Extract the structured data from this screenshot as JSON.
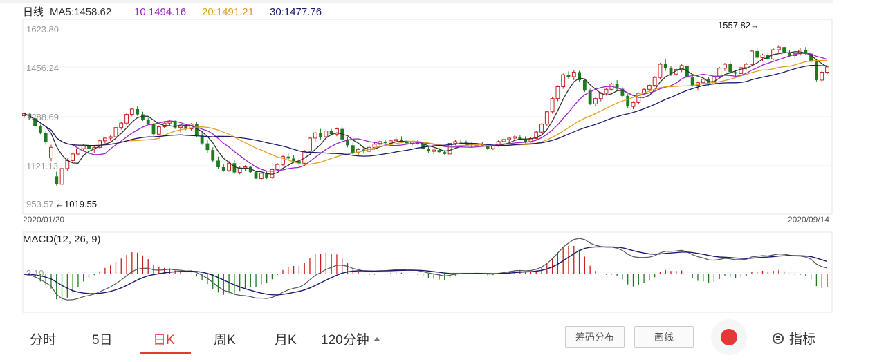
{
  "chart_data": [
    {
      "type": "candlestick",
      "title": "日线",
      "date_start": "2020/01/20",
      "date_end": "2020/09/14",
      "y_ticks": [
        "1623.80",
        "1456.24",
        "1288.69",
        "1121.13",
        "953.57"
      ],
      "ylim": [
        953.57,
        1623.8
      ],
      "ma_legend": [
        {
          "label": "MA5:1458.62",
          "color": "#333333"
        },
        {
          "label": "10:1494.16",
          "color": "#a020c8"
        },
        {
          "label": "20:1491.21",
          "color": "#e0a020"
        },
        {
          "label": "30:1477.76",
          "color": "#1a1a6e"
        }
      ],
      "max_annotation": "1557.82→",
      "min_annotation": "←1019.55",
      "colors": {
        "up": "#c81e1e",
        "down": "#1e7a1e"
      },
      "ohlc": [
        [
          1290,
          1302,
          1282,
          1298
        ],
        [
          1297,
          1300,
          1276,
          1280
        ],
        [
          1280,
          1284,
          1248,
          1250
        ],
        [
          1250,
          1256,
          1220,
          1225
        ],
        [
          1225,
          1232,
          1180,
          1190
        ],
        [
          1130,
          1180,
          1118,
          1170
        ],
        [
          1060,
          1078,
          1025,
          1030
        ],
        [
          1030,
          1095,
          1019.55,
          1090
        ],
        [
          1090,
          1128,
          1082,
          1120
        ],
        [
          1120,
          1150,
          1115,
          1145
        ],
        [
          1145,
          1170,
          1140,
          1165
        ],
        [
          1165,
          1182,
          1155,
          1178
        ],
        [
          1178,
          1190,
          1160,
          1165
        ],
        [
          1165,
          1176,
          1150,
          1170
        ],
        [
          1170,
          1198,
          1165,
          1195
        ],
        [
          1195,
          1210,
          1185,
          1205
        ],
        [
          1205,
          1215,
          1195,
          1210
        ],
        [
          1210,
          1250,
          1205,
          1245
        ],
        [
          1245,
          1268,
          1238,
          1262
        ],
        [
          1262,
          1300,
          1255,
          1295
        ],
        [
          1295,
          1320,
          1288,
          1315
        ],
        [
          1315,
          1325,
          1290,
          1295
        ],
        [
          1295,
          1305,
          1270,
          1275
        ],
        [
          1275,
          1282,
          1255,
          1260
        ],
        [
          1260,
          1262,
          1215,
          1220
        ],
        [
          1220,
          1252,
          1215,
          1248
        ],
        [
          1248,
          1268,
          1242,
          1262
        ],
        [
          1262,
          1275,
          1250,
          1270
        ],
        [
          1270,
          1272,
          1240,
          1245
        ],
        [
          1245,
          1255,
          1228,
          1250
        ],
        [
          1250,
          1260,
          1235,
          1240
        ],
        [
          1240,
          1262,
          1232,
          1258
        ],
        [
          1258,
          1265,
          1210,
          1215
        ],
        [
          1215,
          1230,
          1180,
          1185
        ],
        [
          1185,
          1198,
          1150,
          1160
        ],
        [
          1160,
          1170,
          1115,
          1120
        ],
        [
          1120,
          1135,
          1090,
          1095
        ],
        [
          1095,
          1108,
          1078,
          1082
        ],
        [
          1082,
          1118,
          1078,
          1110
        ],
        [
          1110,
          1122,
          1070,
          1075
        ],
        [
          1075,
          1098,
          1068,
          1092
        ],
        [
          1092,
          1102,
          1080,
          1096
        ],
        [
          1096,
          1100,
          1072,
          1076
        ],
        [
          1076,
          1080,
          1050,
          1052
        ],
        [
          1052,
          1075,
          1048,
          1072
        ],
        [
          1072,
          1082,
          1050,
          1056
        ],
        [
          1056,
          1090,
          1052,
          1086
        ],
        [
          1086,
          1110,
          1080,
          1105
        ],
        [
          1105,
          1140,
          1100,
          1135
        ],
        [
          1135,
          1150,
          1120,
          1128
        ],
        [
          1128,
          1142,
          1110,
          1118
        ],
        [
          1118,
          1128,
          1100,
          1110
        ],
        [
          1110,
          1160,
          1105,
          1155
        ],
        [
          1155,
          1210,
          1150,
          1205
        ],
        [
          1205,
          1230,
          1190,
          1225
        ],
        [
          1225,
          1240,
          1200,
          1210
        ],
        [
          1210,
          1238,
          1205,
          1232
        ],
        [
          1232,
          1240,
          1215,
          1220
        ],
        [
          1220,
          1245,
          1212,
          1240
        ],
        [
          1240,
          1248,
          1195,
          1200
        ],
        [
          1200,
          1210,
          1170,
          1178
        ],
        [
          1178,
          1188,
          1140,
          1150
        ],
        [
          1150,
          1168,
          1140,
          1162
        ],
        [
          1162,
          1172,
          1150,
          1155
        ],
        [
          1155,
          1175,
          1148,
          1170
        ],
        [
          1170,
          1188,
          1165,
          1182
        ],
        [
          1182,
          1198,
          1172,
          1192
        ],
        [
          1192,
          1200,
          1180,
          1186
        ],
        [
          1186,
          1198,
          1178,
          1195
        ],
        [
          1195,
          1208,
          1188,
          1200
        ],
        [
          1200,
          1212,
          1190,
          1195
        ],
        [
          1195,
          1200,
          1180,
          1185
        ],
        [
          1185,
          1195,
          1178,
          1190
        ],
        [
          1190,
          1198,
          1180,
          1184
        ],
        [
          1184,
          1190,
          1160,
          1165
        ],
        [
          1165,
          1172,
          1150,
          1155
        ],
        [
          1155,
          1165,
          1145,
          1160
        ],
        [
          1160,
          1168,
          1148,
          1152
        ],
        [
          1152,
          1160,
          1140,
          1145
        ],
        [
          1145,
          1190,
          1142,
          1185
        ],
        [
          1185,
          1198,
          1178,
          1192
        ],
        [
          1192,
          1200,
          1182,
          1188
        ],
        [
          1188,
          1196,
          1178,
          1183
        ],
        [
          1183,
          1188,
          1172,
          1178
        ],
        [
          1178,
          1186,
          1170,
          1182
        ],
        [
          1182,
          1190,
          1172,
          1175
        ],
        [
          1175,
          1182,
          1160,
          1165
        ],
        [
          1165,
          1180,
          1160,
          1175
        ],
        [
          1175,
          1198,
          1172,
          1192
        ],
        [
          1192,
          1205,
          1185,
          1200
        ],
        [
          1200,
          1210,
          1192,
          1205
        ],
        [
          1205,
          1215,
          1195,
          1210
        ],
        [
          1210,
          1218,
          1198,
          1202
        ],
        [
          1202,
          1212,
          1185,
          1190
        ],
        [
          1190,
          1208,
          1188,
          1204
        ],
        [
          1204,
          1232,
          1200,
          1228
        ],
        [
          1228,
          1262,
          1222,
          1258
        ],
        [
          1258,
          1310,
          1252,
          1305
        ],
        [
          1305,
          1360,
          1298,
          1355
        ],
        [
          1355,
          1405,
          1345,
          1400
        ],
        [
          1400,
          1450,
          1392,
          1445
        ],
        [
          1445,
          1458,
          1430,
          1438
        ],
        [
          1438,
          1462,
          1425,
          1455
        ],
        [
          1455,
          1460,
          1420,
          1425
        ],
        [
          1425,
          1430,
          1380,
          1385
        ],
        [
          1385,
          1392,
          1330,
          1335
        ],
        [
          1335,
          1360,
          1325,
          1355
        ],
        [
          1355,
          1380,
          1345,
          1375
        ],
        [
          1375,
          1395,
          1368,
          1390
        ],
        [
          1390,
          1415,
          1385,
          1410
        ],
        [
          1410,
          1425,
          1388,
          1392
        ],
        [
          1392,
          1398,
          1360,
          1365
        ],
        [
          1365,
          1372,
          1320,
          1325
        ],
        [
          1325,
          1345,
          1315,
          1340
        ],
        [
          1340,
          1378,
          1335,
          1375
        ],
        [
          1375,
          1395,
          1368,
          1390
        ],
        [
          1390,
          1410,
          1380,
          1405
        ],
        [
          1405,
          1440,
          1400,
          1435
        ],
        [
          1435,
          1490,
          1430,
          1485
        ],
        [
          1485,
          1505,
          1460,
          1470
        ],
        [
          1470,
          1478,
          1440,
          1448
        ],
        [
          1448,
          1470,
          1442,
          1465
        ],
        [
          1465,
          1485,
          1455,
          1480
        ],
        [
          1480,
          1490,
          1430,
          1435
        ],
        [
          1435,
          1442,
          1400,
          1405
        ],
        [
          1405,
          1420,
          1385,
          1415
        ],
        [
          1415,
          1432,
          1408,
          1428
        ],
        [
          1428,
          1438,
          1405,
          1410
        ],
        [
          1410,
          1445,
          1405,
          1440
        ],
        [
          1440,
          1475,
          1435,
          1470
        ],
        [
          1470,
          1490,
          1460,
          1485
        ],
        [
          1485,
          1495,
          1450,
          1455
        ],
        [
          1455,
          1462,
          1440,
          1450
        ],
        [
          1450,
          1478,
          1445,
          1472
        ],
        [
          1472,
          1490,
          1465,
          1485
        ],
        [
          1485,
          1540,
          1480,
          1535
        ],
        [
          1535,
          1545,
          1505,
          1510
        ],
        [
          1510,
          1525,
          1498,
          1520
        ],
        [
          1520,
          1530,
          1500,
          1505
        ],
        [
          1505,
          1545,
          1500,
          1540
        ],
        [
          1540,
          1557.82,
          1530,
          1550
        ],
        [
          1550,
          1555,
          1525,
          1530
        ],
        [
          1530,
          1538,
          1512,
          1518
        ],
        [
          1518,
          1530,
          1508,
          1525
        ],
        [
          1525,
          1545,
          1518,
          1538
        ],
        [
          1538,
          1550,
          1520,
          1525
        ],
        [
          1525,
          1530,
          1490,
          1495
        ],
        [
          1495,
          1502,
          1420,
          1425
        ],
        [
          1425,
          1460,
          1418,
          1455
        ],
        [
          1455,
          1480,
          1448,
          1475
        ]
      ]
    },
    {
      "type": "bar",
      "title": "MACD(12, 26, 9)",
      "y_tick": "3.10",
      "colors": {
        "positive": "#c81e1e",
        "negative": "#1e7a1e",
        "dif": "#555555",
        "dea": "#1a1a6e"
      }
    }
  ],
  "toolbar": {
    "tabs": [
      {
        "label": "分时"
      },
      {
        "label": "5日"
      },
      {
        "label": "日K"
      },
      {
        "label": "周K"
      },
      {
        "label": "月K"
      },
      {
        "label": "120分钟"
      }
    ],
    "chip_distribution": "筹码分布",
    "draw_line": "画线",
    "indicator": "指标"
  }
}
